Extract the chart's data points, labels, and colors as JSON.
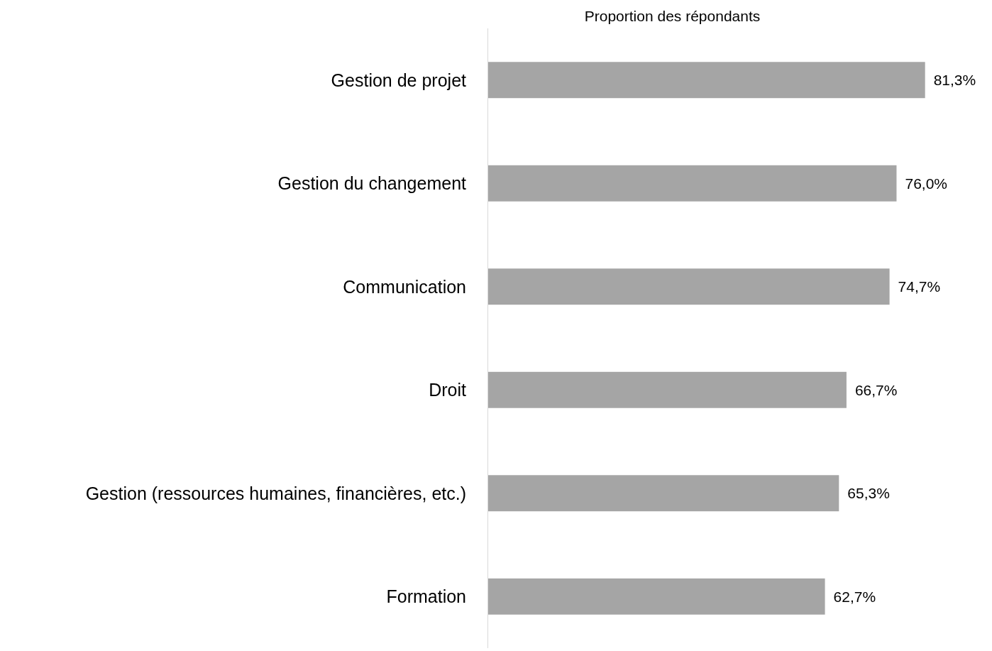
{
  "chart_data": {
    "type": "bar",
    "orientation": "horizontal",
    "title": "Proportion des répondants",
    "categories": [
      "Gestion de projet",
      "Gestion du changement",
      "Communication",
      "Droit",
      "Gestion (ressources humaines, financières, etc.)",
      "Formation"
    ],
    "values": [
      81.3,
      76.0,
      74.7,
      66.7,
      65.3,
      62.7
    ],
    "value_labels": [
      "81,3%",
      "76,0%",
      "74,7%",
      "66,7%",
      "65,3%",
      "62,7%"
    ],
    "color": "#a5a5a5"
  }
}
